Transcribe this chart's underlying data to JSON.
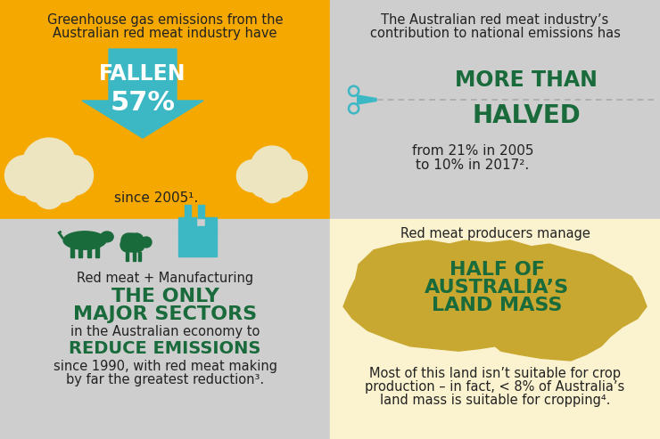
{
  "bg_yellow": "#F5A800",
  "bg_gray": "#CECECE",
  "bg_light_yellow": "#FBF3D0",
  "teal": "#3BB8C3",
  "dark_green": "#1A6B3C",
  "dark_text": "#222222",
  "cloud_color": "#EDE5C0",
  "panel_tl_text1": "Greenhouse gas emissions from the",
  "panel_tl_text2": "Australian red meat industry have",
  "panel_tl_big1": "FALLEN",
  "panel_tl_big2": "57%",
  "panel_tl_since": "since 2005¹.",
  "panel_tr_text1": "The Australian red meat industry’s",
  "panel_tr_text2": "contribution to national emissions has",
  "panel_tr_big1": "MORE THAN",
  "panel_tr_big2": "HALVED",
  "panel_tr_sub1": "from 21% in 2005",
  "panel_tr_sub2": "to 10% in 2017².",
  "panel_bl_label": "Red meat + Manufacturing",
  "panel_bl_big1": "THE ONLY",
  "panel_bl_big2": "MAJOR SECTORS",
  "panel_bl_mid": "in the Australian economy to",
  "panel_bl_big3": "REDUCE EMISSIONS",
  "panel_bl_sub1": "since 1990, with red meat making",
  "panel_bl_sub2": "by far the greatest reduction³.",
  "panel_br_label": "Red meat producers manage",
  "panel_br_big1": "HALF OF",
  "panel_br_big2": "AUSTRALIA’S",
  "panel_br_big3": "LAND MASS",
  "panel_br_sub1": "Most of this land isn’t suitable for crop",
  "panel_br_sub2": "production – in fact, < 8% of Australia’s",
  "panel_br_sub3": "land mass is suitable for cropping⁴.",
  "aus_color": "#C8A830",
  "fig_w": 7.4,
  "fig_h": 4.93,
  "dpi": 100
}
